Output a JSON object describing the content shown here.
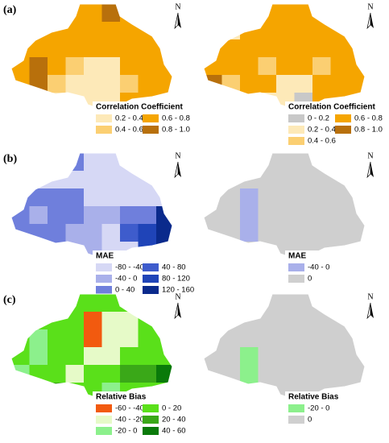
{
  "north_label": "N",
  "panels": [
    {
      "label": "(a)",
      "maps": [
        {
          "legend": {
            "title": "Correlation Coefficient",
            "items": [
              {
                "label": "0.2 - 0.4",
                "color": "#fde9b8"
              },
              {
                "label": "0.4 - 0.6",
                "color": "#fbcf72"
              },
              {
                "label": "0.6 - 0.8",
                "color": "#f5a500"
              },
              {
                "label": "0.8 - 1.0",
                "color": "#b8700c"
              }
            ]
          }
        },
        {
          "legend": {
            "title": "Correlation Coefficient",
            "items": [
              {
                "label": "0 - 0.2",
                "color": "#c8c8c8"
              },
              {
                "label": "0.2 - 0.4",
                "color": "#fde9b8"
              },
              {
                "label": "0.4 - 0.6",
                "color": "#fbcf72"
              },
              {
                "label": "0.6 - 0.8",
                "color": "#f5a500"
              },
              {
                "label": "0.8 - 1.0",
                "color": "#b8700c"
              }
            ]
          }
        }
      ]
    },
    {
      "label": "(b)",
      "maps": [
        {
          "legend": {
            "title": "MAE",
            "items": [
              {
                "label": "-80 - -40",
                "color": "#d6d8f5"
              },
              {
                "label": "-40 - 0",
                "color": "#a9b0ea"
              },
              {
                "label": "0 - 40",
                "color": "#6f7fdc"
              },
              {
                "label": "40 - 80",
                "color": "#3e5ccc"
              },
              {
                "label": "80 - 120",
                "color": "#1f44b8"
              },
              {
                "label": "120 - 160",
                "color": "#0a2a8c"
              }
            ]
          }
        },
        {
          "legend": {
            "title": "MAE",
            "items": [
              {
                "label": "-40 - 0",
                "color": "#a9b0ea"
              },
              {
                "label": "0",
                "color": "#cfcfcf"
              }
            ]
          }
        }
      ]
    },
    {
      "label": "(c)",
      "maps": [
        {
          "legend": {
            "title": "Relative Bias",
            "items": [
              {
                "label": "-60 - -40",
                "color": "#f25a0f"
              },
              {
                "label": "-40 - -20",
                "color": "#e6fac8"
              },
              {
                "label": "-20 - 0",
                "color": "#8cf08c"
              },
              {
                "label": "0 - 20",
                "color": "#5ae01a"
              },
              {
                "label": "20 - 40",
                "color": "#3aa818"
              },
              {
                "label": "40 - 60",
                "color": "#0a7a0a"
              }
            ]
          }
        },
        {
          "legend": {
            "title": "Relative Bias",
            "items": [
              {
                "label": "-20 - 0",
                "color": "#8cf08c"
              },
              {
                "label": "0",
                "color": "#cfcfcf"
              }
            ]
          }
        }
      ]
    }
  ]
}
